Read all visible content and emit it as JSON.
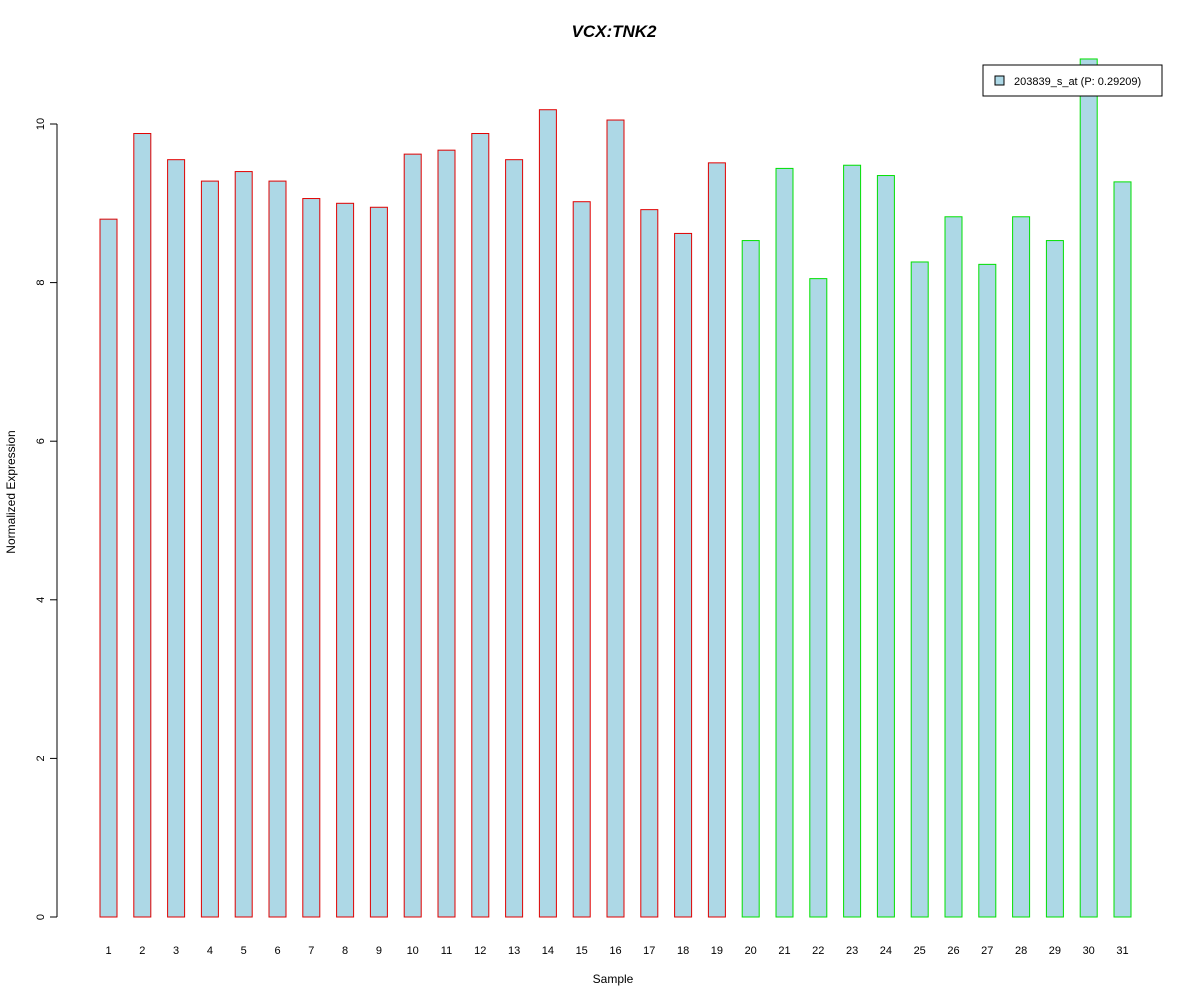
{
  "chart_data": {
    "type": "bar",
    "title": "VCX:TNK2",
    "xlabel": "Sample",
    "ylabel": "Normalized Expression",
    "ylim": [
      0,
      10.8
    ],
    "yticks": [
      "0",
      "2",
      "4",
      "6",
      "8",
      "10"
    ],
    "ytick_values": [
      0,
      2,
      4,
      6,
      8,
      10
    ],
    "grid": false,
    "categories": [
      "1",
      "2",
      "3",
      "4",
      "5",
      "6",
      "7",
      "8",
      "9",
      "10",
      "11",
      "12",
      "13",
      "14",
      "15",
      "16",
      "17",
      "18",
      "19",
      "20",
      "21",
      "22",
      "23",
      "24",
      "25",
      "26",
      "27",
      "28",
      "29",
      "30",
      "31"
    ],
    "series": [
      {
        "name": "203839_s_at (P: 0.29209)",
        "values": [
          8.8,
          9.88,
          9.55,
          9.28,
          9.4,
          9.28,
          9.06,
          9.0,
          8.95,
          9.62,
          9.67,
          9.88,
          9.55,
          10.18,
          9.02,
          10.05,
          8.92,
          8.62,
          9.51,
          8.53,
          9.44,
          8.05,
          9.48,
          9.35,
          8.26,
          8.83,
          8.23,
          8.83,
          8.53,
          10.82,
          9.27
        ]
      }
    ],
    "groups": [
      {
        "samples": [
          1,
          19
        ],
        "border_color": "#e00000"
      },
      {
        "samples": [
          20,
          31
        ],
        "border_color": "#00e000"
      }
    ],
    "legend_position": "top-right"
  },
  "colors": {
    "bar_fill": "#add8e6",
    "title": "#0000cc",
    "axis": "#000000"
  }
}
